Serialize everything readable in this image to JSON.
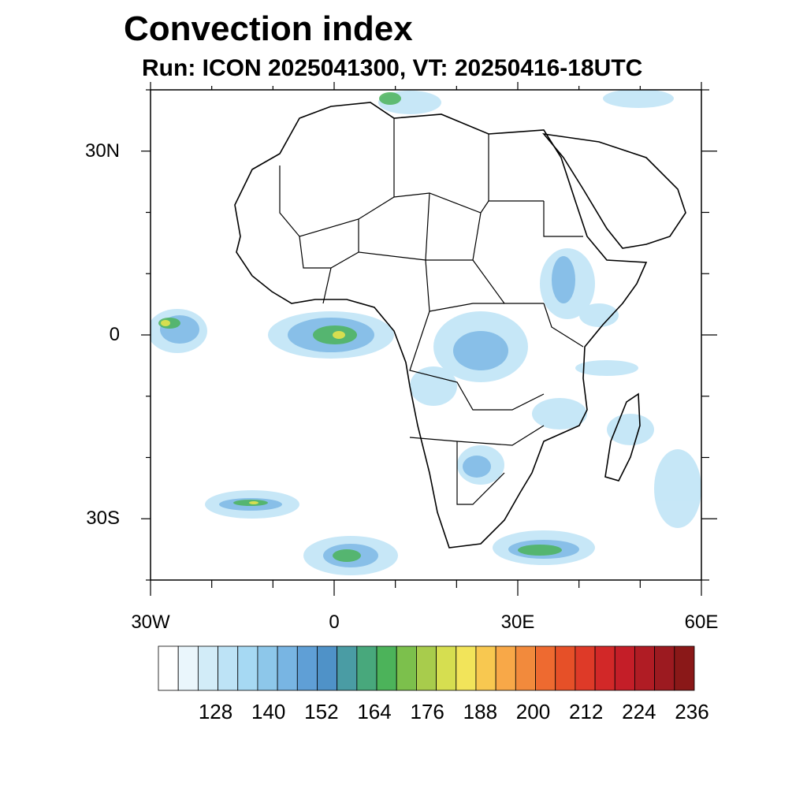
{
  "title": "Convection index",
  "subtitle": "Run: ICON 2025041300,  VT: 20250416-18UTC",
  "axes": {
    "x_ticks": [
      {
        "label": "30W",
        "lon": -30
      },
      {
        "label": "0",
        "lon": 0
      },
      {
        "label": "30E",
        "lon": 30
      },
      {
        "label": "60E",
        "lon": 60
      }
    ],
    "y_ticks": [
      {
        "label": "30N",
        "lat": 30
      },
      {
        "label": "0",
        "lat": 0
      },
      {
        "label": "30S",
        "lat": -30
      }
    ],
    "lon_range": [
      -30,
      60
    ],
    "lat_range": [
      -40,
      40
    ]
  },
  "colorbar": {
    "colors": [
      "#ffffff",
      "#eaf6fc",
      "#d2ecf8",
      "#bde3f6",
      "#a6d9f3",
      "#8dc7ea",
      "#78b5e3",
      "#5f9fd6",
      "#4f92c8",
      "#4a9ca4",
      "#48a87c",
      "#4cb35a",
      "#7cc04c",
      "#a8cc4c",
      "#d6de50",
      "#f2e45a",
      "#f8c850",
      "#f8a848",
      "#f28a3c",
      "#ee6a30",
      "#e65028",
      "#de3a28",
      "#d22828",
      "#c41e28",
      "#b01c24",
      "#9c1a20",
      "#8a1818"
    ],
    "labels": [
      "128",
      "140",
      "152",
      "164",
      "176",
      "188",
      "200",
      "212",
      "224",
      "236"
    ]
  }
}
